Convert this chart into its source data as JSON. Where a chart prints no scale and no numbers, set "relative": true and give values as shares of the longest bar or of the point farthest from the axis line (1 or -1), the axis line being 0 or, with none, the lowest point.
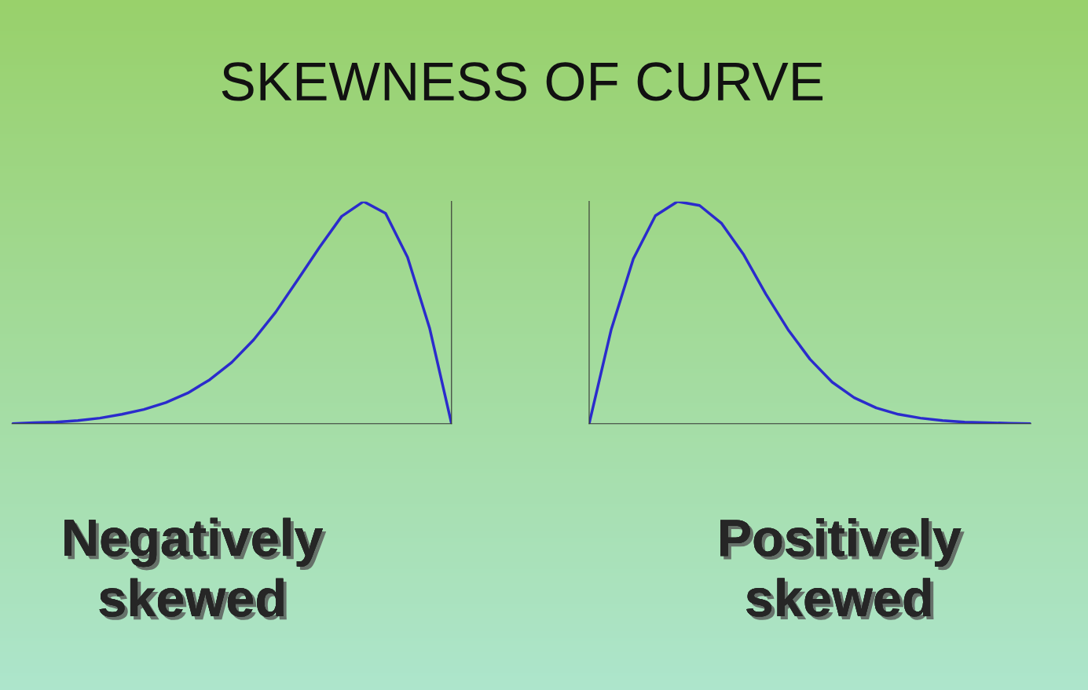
{
  "chart_data": [
    {
      "type": "line",
      "title": "SKEWNESS OF CURVE",
      "xlabel": "Negatively skewed",
      "relative": true,
      "color": "#2b2bcc",
      "categories": [
        null,
        null,
        null,
        null,
        null,
        null,
        null,
        null,
        null,
        null,
        null,
        null,
        null,
        null,
        null,
        null,
        null,
        null,
        null,
        null,
        null
      ],
      "values": [
        0,
        0.004,
        0.007,
        0.014,
        0.025,
        0.042,
        0.064,
        0.095,
        0.138,
        0.198,
        0.276,
        0.378,
        0.502,
        0.647,
        0.795,
        0.933,
        1.0,
        0.947,
        0.749,
        0.431,
        0
      ]
    },
    {
      "type": "line",
      "xlabel": "Positively skewed",
      "relative": true,
      "color": "#2b2bcc",
      "categories": [
        null,
        null,
        null,
        null,
        null,
        null,
        null,
        null,
        null,
        null,
        null,
        null,
        null,
        null,
        null,
        null,
        null,
        null,
        null,
        null,
        null
      ],
      "values": [
        0,
        0.424,
        0.742,
        0.936,
        1.0,
        0.982,
        0.901,
        0.76,
        0.583,
        0.424,
        0.29,
        0.187,
        0.117,
        0.071,
        0.042,
        0.025,
        0.014,
        0.007,
        0.004,
        0.002,
        0
      ]
    }
  ]
}
